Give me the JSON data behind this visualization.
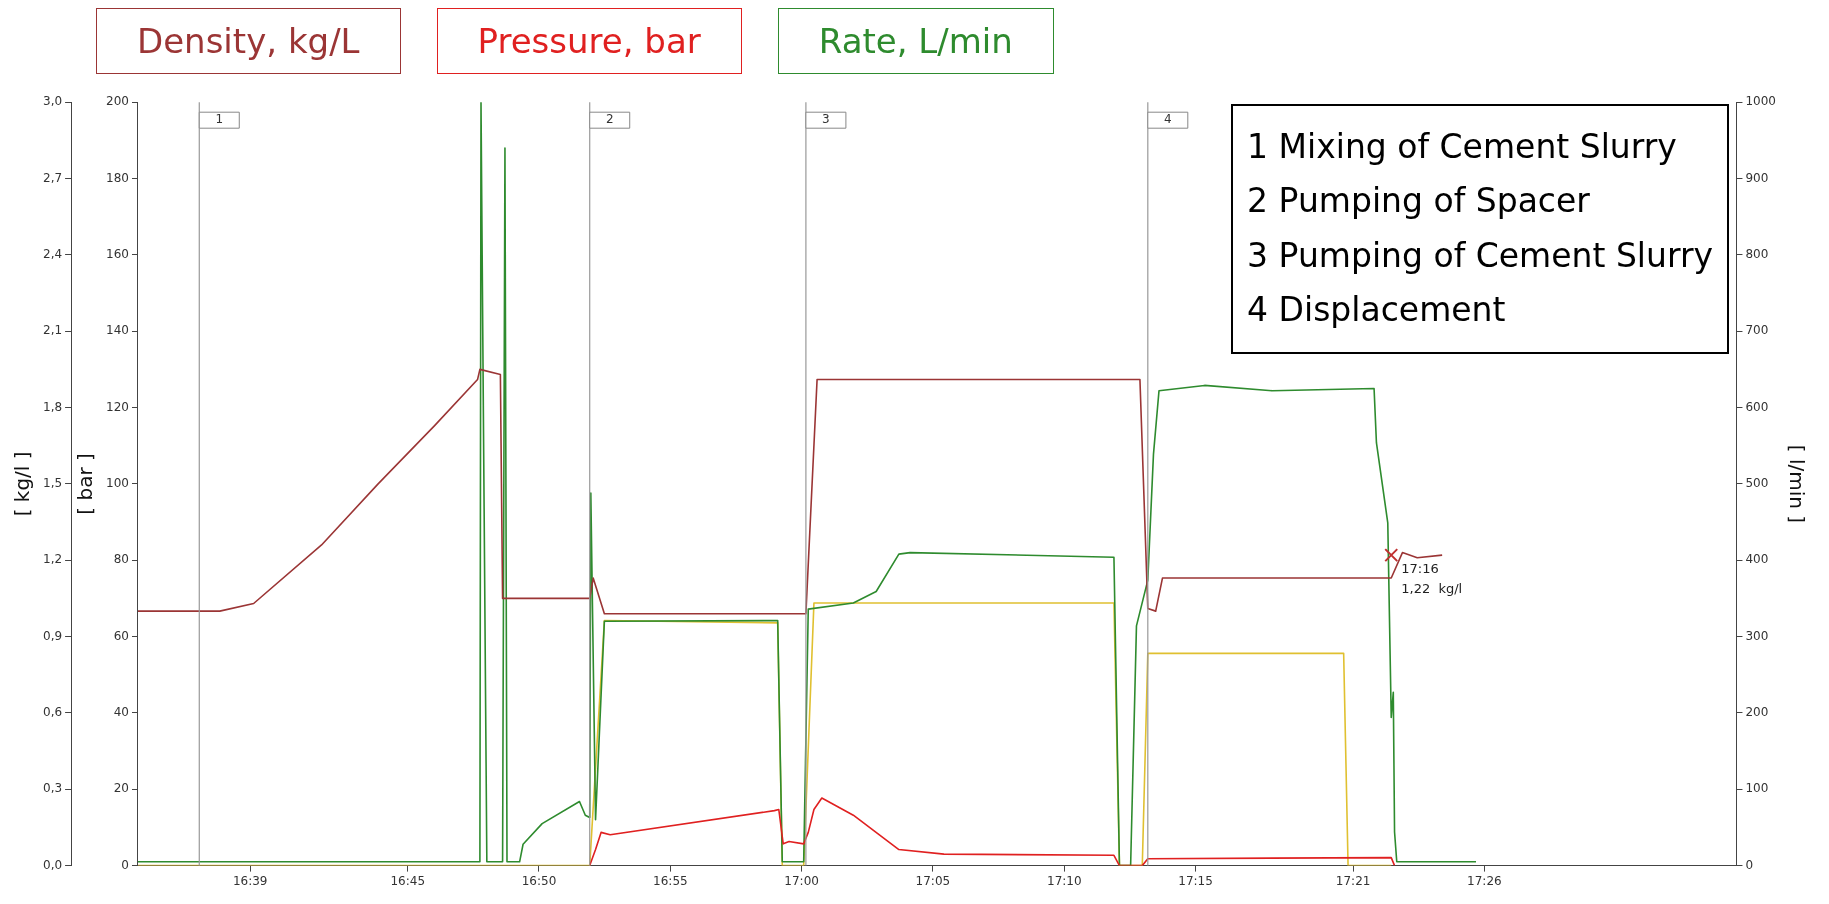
{
  "chart_data": {
    "type": "line",
    "legend": "top",
    "grid": false,
    "xlim": [
      16.5788,
      17.5933
    ],
    "xticks": [
      {
        "value": 16.65,
        "label": "16:39"
      },
      {
        "value": 16.75,
        "label": "16:45"
      },
      {
        "value": 16.8333,
        "label": "16:50"
      },
      {
        "value": 16.9167,
        "label": "16:55"
      },
      {
        "value": 17.0,
        "label": "17:00"
      },
      {
        "value": 17.0833,
        "label": "17:05"
      },
      {
        "value": 17.1667,
        "label": "17:10"
      },
      {
        "value": 17.25,
        "label": "17:15"
      },
      {
        "value": 17.35,
        "label": "17:21"
      },
      {
        "value": 17.4333,
        "label": "17:26"
      }
    ],
    "ylabel": "[ kg/l ]",
    "ylim": [
      0,
      3
    ],
    "yticks": [
      {
        "value": 0,
        "label": "0,0"
      },
      {
        "value": 0.3,
        "label": "0,3"
      },
      {
        "value": 0.6,
        "label": "0,6"
      },
      {
        "value": 0.9,
        "label": "0,9"
      },
      {
        "value": 1.2,
        "label": "1,2"
      },
      {
        "value": 1.5,
        "label": "1,5"
      },
      {
        "value": 1.8,
        "label": "1,8"
      },
      {
        "value": 2.1,
        "label": "2,1"
      },
      {
        "value": 2.4,
        "label": "2,4"
      },
      {
        "value": 2.7,
        "label": "2,7"
      },
      {
        "value": 3.0,
        "label": "3,0"
      }
    ],
    "y3label": "[ bar ]",
    "y3lim": [
      0,
      200
    ],
    "y3ticks": [
      0,
      20,
      40,
      60,
      80,
      100,
      120,
      140,
      160,
      180,
      200
    ],
    "y2label": "[ l/min ]",
    "y2lim": [
      0,
      1000
    ],
    "y2ticks": [
      0,
      100,
      200,
      300,
      400,
      500,
      600,
      700,
      800,
      900,
      1000
    ],
    "series": [
      {
        "name": "Density, kg/L",
        "color": "#9b3535",
        "axis": "y",
        "x": [
          16.5788,
          16.6177,
          16.6307,
          16.6522,
          16.6953,
          16.7312,
          16.7672,
          16.7943,
          16.7958,
          16.8088,
          16.8102,
          16.8138,
          16.8655,
          16.8677,
          16.8748,
          17.0027,
          17.0098,
          17.2147,
          17.2197,
          17.2247,
          17.229,
          17.3742,
          17.3813,
          17.3907,
          17.4065
        ],
        "values": [
          1.0,
          1.0,
          1.0,
          1.03,
          1.26,
          1.5,
          1.73,
          1.91,
          1.95,
          1.93,
          1.05,
          1.05,
          1.05,
          1.13,
          0.99,
          0.99,
          1.91,
          1.91,
          1.01,
          1.0,
          1.13,
          1.13,
          1.23,
          1.21,
          1.22
        ]
      },
      {
        "name": "Pressure, bar",
        "color": "#e02020",
        "axis": "y3",
        "x": [
          16.8655,
          16.8692,
          16.8727,
          16.8785,
          16.9827,
          16.9855,
          16.9883,
          16.992,
          17.0013,
          17.0042,
          17.0078,
          17.0128,
          17.0328,
          17.0617,
          17.0903,
          17.1982,
          17.2017,
          17.2162,
          17.2197,
          17.3742,
          17.3763
        ],
        "values": [
          0,
          4.2,
          8.7,
          8.1,
          14.4,
          14.7,
          5.7,
          6.3,
          5.7,
          8.7,
          14.7,
          17.7,
          13.2,
          4.2,
          3.0,
          2.7,
          0,
          0,
          1.8,
          2.1,
          0
        ]
      },
      {
        "name": "Rate, L/min",
        "color": "#2e8b2e",
        "axis": "y2",
        "x": [
          16.5788,
          16.7958,
          16.7965,
          16.8002,
          16.8102,
          16.8117,
          16.813,
          16.821,
          16.8232,
          16.8353,
          16.859,
          16.8627,
          16.8655,
          16.8662,
          16.8692,
          16.8748,
          16.9848,
          16.9877,
          17.0013,
          17.0042,
          17.0328,
          17.0473,
          17.0617,
          17.0688,
          17.1982,
          17.2017,
          17.2088,
          17.2125,
          17.2197,
          17.2233,
          17.2268,
          17.2557,
          17.2987,
          17.3633,
          17.3648,
          17.372,
          17.3742,
          17.3755,
          17.3763,
          17.3777,
          17.428
        ],
        "values": [
          5,
          5,
          1000,
          5,
          5,
          940,
          5,
          5,
          28,
          55,
          84,
          66,
          63,
          488,
          60,
          320,
          321,
          5,
          5,
          336,
          344,
          359,
          408,
          410,
          404,
          0,
          0,
          314,
          374,
          539,
          622,
          629,
          622,
          625,
          554,
          449,
          194,
          227,
          44,
          5,
          5
        ]
      },
      {
        "color": "#e0c030",
        "axis": "y2",
        "x": [
          16.5788,
          16.8655,
          16.8748,
          16.9848,
          16.9877,
          17.0013,
          17.0078,
          17.1982,
          17.2017,
          17.2162,
          17.2197,
          17.344,
          17.3468,
          17.3742
        ],
        "values": [
          0,
          0,
          321,
          318,
          0,
          0,
          344,
          344,
          0,
          0,
          278,
          278,
          0,
          0
        ]
      }
    ],
    "ref_lines": [
      {
        "axis": "x",
        "value": 16.6177,
        "color": "#999999"
      },
      {
        "axis": "x",
        "value": 16.8655,
        "color": "#999999"
      },
      {
        "axis": "x",
        "value": 17.0027,
        "color": "#999999"
      },
      {
        "axis": "x",
        "value": 17.2197,
        "color": "#999999"
      }
    ],
    "annotations": [
      "1 Mixing of Cement Slurry",
      "2 Pumping of Spacer",
      "3 Pumping of Cement Slurry",
      "4 Displacement",
      {
        "text": "1",
        "x": 16.6177
      },
      {
        "text": "2",
        "x": 16.8655
      },
      {
        "text": "3",
        "x": 17.0027
      },
      {
        "text": "4",
        "x": 17.2197
      },
      {
        "text": "17:16",
        "x": 17.3742,
        "y": 1.22
      },
      {
        "text": "1,22  kg/l",
        "x": 17.3742,
        "y": 1.22
      }
    ]
  }
}
